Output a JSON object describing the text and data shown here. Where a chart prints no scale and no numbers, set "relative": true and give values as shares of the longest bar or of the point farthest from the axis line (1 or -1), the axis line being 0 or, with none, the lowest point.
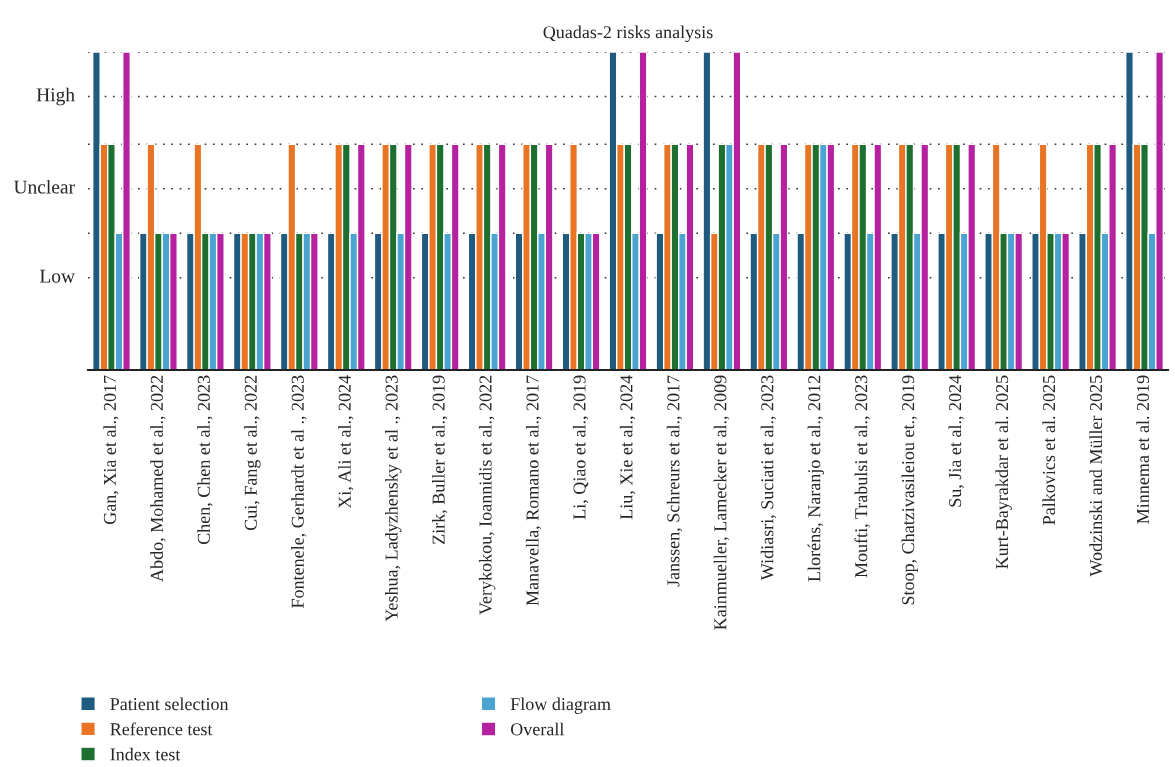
{
  "chart_data": {
    "type": "bar",
    "title": "Quadas-2 risks analysis",
    "categories": [
      "Gan, Xia et al., 2017",
      "Abdo, Mohamed et al., 2022",
      "Chen, Chen et al., 2023",
      "Cui, Fang et al., 2022",
      "Fontenele, Gerhardt et al ., 2023",
      "Xi, Ali et al., 2024",
      "Yeshua, Ladyzhensky et al ., 2023",
      "Zirk, Buller et al., 2019",
      "Verykokou, Ioannidis et al., 2022",
      "Manavella, Romano et al., 2017",
      "Li, Qiao et al., 2019",
      "Liu, Xie et al., 2024",
      "Janssen, Schreurs et al., 2017",
      "Kainmueller, Lamecker et al., 2009",
      "Widiasri, Suciati et al., 2023",
      "Lloréns, Naranjo et al., 2012",
      "Moufti, Trabulsi et al., 2023",
      "Stoop, Chatzivasileiou et., 2019",
      "Su, Jia et al., 2024",
      "Kurt-Bayrakdar et al. 2025",
      "Palkovics et al. 2025",
      "Wodzinski and Müller 2025",
      "Minnema et al. 2019"
    ],
    "series": [
      {
        "name": "Patient selection",
        "color": "#1f5a7f",
        "values": [
          1,
          0.43,
          0.43,
          0.43,
          0.43,
          0.43,
          0.43,
          0.43,
          0.43,
          0.43,
          0.43,
          1,
          0.43,
          1,
          0.43,
          0.43,
          0.43,
          0.43,
          0.43,
          0.43,
          0.43,
          0.43,
          1
        ]
      },
      {
        "name": "Reference test",
        "color": "#e87424",
        "values": [
          0.71,
          0.71,
          0.71,
          0.43,
          0.71,
          0.71,
          0.71,
          0.71,
          0.71,
          0.71,
          0.71,
          0.71,
          0.71,
          0.43,
          0.71,
          0.71,
          0.71,
          0.71,
          0.71,
          0.71,
          0.71,
          0.71,
          0.71
        ]
      },
      {
        "name": "Index test",
        "color": "#1e7030",
        "values": [
          0.71,
          0.43,
          0.43,
          0.43,
          0.43,
          0.71,
          0.71,
          0.71,
          0.71,
          0.71,
          0.43,
          0.71,
          0.71,
          0.71,
          0.71,
          0.71,
          0.71,
          0.71,
          0.71,
          0.43,
          0.43,
          0.71,
          0.71
        ]
      },
      {
        "name": "Flow diagram",
        "color": "#4aa3d1",
        "values": [
          0.43,
          0.43,
          0.43,
          0.43,
          0.43,
          0.43,
          0.43,
          0.43,
          0.43,
          0.43,
          0.43,
          0.43,
          0.43,
          0.71,
          0.43,
          0.71,
          0.43,
          0.43,
          0.43,
          0.43,
          0.43,
          0.43,
          0.43
        ]
      },
      {
        "name": "Overall",
        "color": "#b5219f",
        "values": [
          1,
          0.43,
          0.43,
          0.43,
          0.43,
          0.71,
          0.71,
          0.71,
          0.71,
          0.71,
          0.43,
          1,
          0.71,
          1,
          0.71,
          0.71,
          0.71,
          0.71,
          0.71,
          0.43,
          0.43,
          0.71,
          1
        ]
      }
    ],
    "relative": true,
    "ref_lines": [
      {
        "axis": "y",
        "value": 0.29,
        "label": "Low"
      },
      {
        "axis": "y",
        "value": 0.43,
        "label": null
      },
      {
        "axis": "y",
        "value": 0.57,
        "label": "Unclear"
      },
      {
        "axis": "y",
        "value": 0.71,
        "label": null
      },
      {
        "axis": "y",
        "value": 0.86,
        "label": "High"
      },
      {
        "axis": "y",
        "value": 1,
        "label": null
      }
    ],
    "legend": "bottom"
  }
}
